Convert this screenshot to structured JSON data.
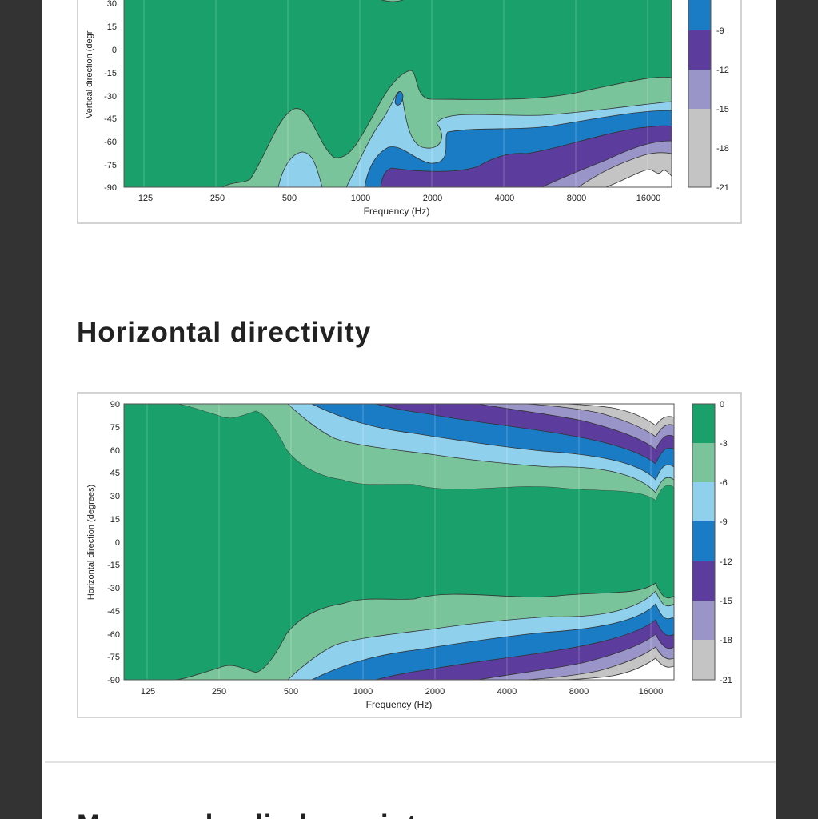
{
  "colors": {
    "background_bar": "#333333",
    "page": "#ffffff",
    "levels": [
      "#1aa06a",
      "#79c49a",
      "#8fd0ec",
      "#1a7cc4",
      "#5c3c9c",
      "#9a95c8",
      "#c4c4c4",
      "#ffffff"
    ]
  },
  "vertical_chart": {
    "chart_data": {
      "type": "heatmap",
      "xlabel": "Frequency (Hz)",
      "ylabel": "Vertical direction (degr",
      "x_ticks": [
        "125",
        "250",
        "500",
        "1000",
        "2000",
        "4000",
        "8000",
        "16000"
      ],
      "y_ticks": [
        "30",
        "15",
        "0",
        "-15",
        "-30",
        "-45",
        "-60",
        "-75",
        "-90"
      ],
      "colorbar_ticks": [
        "-9",
        "-12",
        "-15",
        "-18",
        "-21"
      ],
      "x_scale": "log",
      "y_range": [
        -90,
        30
      ],
      "levels_db": [
        0,
        -3,
        -6,
        -9,
        -12,
        -15,
        -18,
        -21
      ]
    }
  },
  "horizontal_section": {
    "title": "Horizontal directivity"
  },
  "horizontal_chart": {
    "chart_data": {
      "type": "heatmap",
      "xlabel": "Frequency (Hz)",
      "ylabel": "Horizontal direction (degrees)",
      "x_ticks": [
        "125",
        "250",
        "500",
        "1000",
        "2000",
        "4000",
        "8000",
        "16000"
      ],
      "y_ticks": [
        "90",
        "75",
        "60",
        "45",
        "30",
        "15",
        "0",
        "-15",
        "-30",
        "-45",
        "-60",
        "-75",
        "-90"
      ],
      "colorbar_ticks": [
        "0",
        "-3",
        "-6",
        "-9",
        "-12",
        "-15",
        "-18",
        "-21"
      ],
      "x_scale": "log",
      "y_range": [
        -90,
        90
      ],
      "levels_db": [
        0,
        -3,
        -6,
        -9,
        -12,
        -15,
        -18,
        -21
      ]
    }
  },
  "next_section": {
    "title": "Measured cylinder point"
  }
}
